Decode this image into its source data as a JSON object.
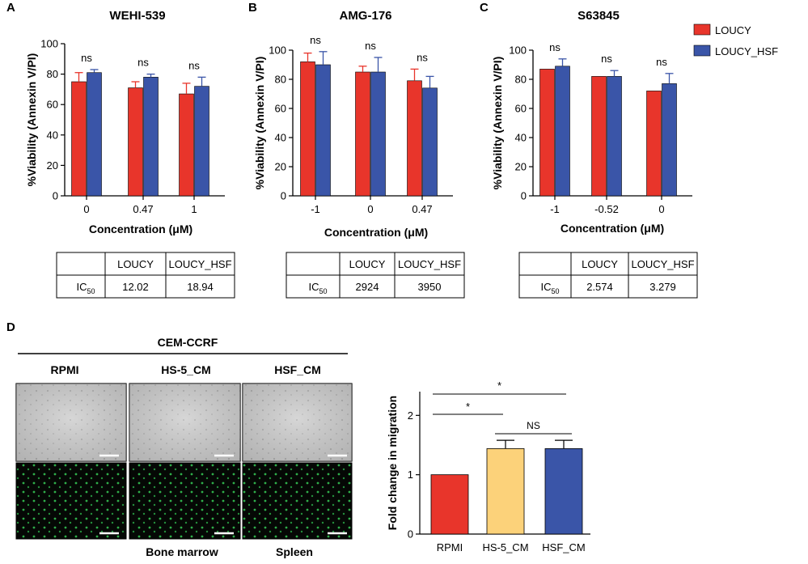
{
  "panels": [
    {
      "letter": "A"
    },
    {
      "letter": "B"
    },
    {
      "letter": "C"
    },
    {
      "letter": "D"
    }
  ],
  "legend": {
    "items": [
      {
        "label": "LOUCY",
        "color": "#e8352b"
      },
      {
        "label": "LOUCY_HSF",
        "color": "#3a55a8"
      }
    ]
  },
  "colors": {
    "loucy": "#e8352b",
    "hsf": "#3a55a8",
    "hs5": "#fcd27a"
  },
  "chart_data": [
    {
      "type": "bar",
      "title": "WEHI-539",
      "xlabel": "Concentration (μM)",
      "ylabel": "%Viability (Annexin V/PI)",
      "ylim": [
        0,
        100
      ],
      "yticks": [
        0,
        20,
        40,
        60,
        80,
        100
      ],
      "categories": [
        "0",
        "0.47",
        "1"
      ],
      "series": [
        {
          "name": "LOUCY",
          "values": [
            75,
            71,
            67
          ],
          "errors": [
            6,
            4,
            7
          ]
        },
        {
          "name": "LOUCY_HSF",
          "values": [
            81,
            78,
            72
          ],
          "errors": [
            2,
            2,
            6
          ]
        }
      ],
      "annotations": [
        "ns",
        "ns",
        "ns"
      ],
      "table": {
        "headers": [
          "",
          "LOUCY",
          "LOUCY_HSF"
        ],
        "row_label": "IC",
        "row_sub": "50",
        "row": [
          "12.02",
          "18.94"
        ]
      }
    },
    {
      "type": "bar",
      "title": "AMG-176",
      "xlabel": "Concentration (μM)",
      "ylabel": "%Viability (Annexin V/PI)",
      "ylim": [
        0,
        100
      ],
      "yticks": [
        0,
        20,
        40,
        60,
        80,
        100
      ],
      "categories": [
        "-1",
        "0",
        "0.47"
      ],
      "series": [
        {
          "name": "LOUCY",
          "values": [
            92,
            85,
            79
          ],
          "errors": [
            6,
            4,
            8
          ]
        },
        {
          "name": "LOUCY_HSF",
          "values": [
            90,
            85,
            74
          ],
          "errors": [
            9,
            10,
            8
          ]
        }
      ],
      "annotations": [
        "ns",
        "ns",
        "ns"
      ],
      "table": {
        "headers": [
          "",
          "LOUCY",
          "LOUCY_HSF"
        ],
        "row_label": "IC",
        "row_sub": "50",
        "row": [
          "2924",
          "3950"
        ]
      }
    },
    {
      "type": "bar",
      "title": "S63845",
      "xlabel": "Concentration (μM)",
      "ylabel": "%Viability (Annexin V/PI)",
      "ylim": [
        0,
        100
      ],
      "yticks": [
        0,
        20,
        40,
        60,
        80,
        100
      ],
      "categories": [
        "-1",
        "-0.52",
        "0"
      ],
      "series": [
        {
          "name": "LOUCY",
          "values": [
            87,
            82,
            72
          ],
          "errors": [
            0,
            0,
            0
          ]
        },
        {
          "name": "LOUCY_HSF",
          "values": [
            89,
            82,
            77
          ],
          "errors": [
            5,
            4,
            7
          ]
        }
      ],
      "annotations": [
        "ns",
        "ns",
        "ns"
      ],
      "table": {
        "headers": [
          "",
          "LOUCY",
          "LOUCY_HSF"
        ],
        "row_label": "IC",
        "row_sub": "50",
        "row": [
          "2.574",
          "3.279"
        ]
      }
    },
    {
      "type": "bar",
      "title": "",
      "xlabel": "",
      "ylabel": "Fold change in migration",
      "ylim": [
        0,
        2.4
      ],
      "yticks": [
        0,
        1,
        2
      ],
      "categories": [
        "RPMI",
        "HS-5_CM",
        "HSF_CM"
      ],
      "values": [
        1.0,
        1.44,
        1.44
      ],
      "errors": [
        0,
        0.14,
        0.14
      ],
      "bar_colors": [
        "#e8352b",
        "#fcd27a",
        "#3a55a8"
      ],
      "significance": [
        {
          "from": "RPMI",
          "to": "HSF_CM",
          "label": "*"
        },
        {
          "from": "RPMI",
          "to": "HS-5_CM",
          "label": "*"
        },
        {
          "from": "HS-5_CM",
          "to": "HSF_CM",
          "label": "NS"
        }
      ]
    }
  ],
  "panel_d": {
    "header": "CEM-CCRF",
    "conditions": [
      "RPMI",
      "HS-5_CM",
      "HSF_CM"
    ],
    "footer_labels": [
      "",
      "Bone marrow",
      "Spleen"
    ]
  }
}
